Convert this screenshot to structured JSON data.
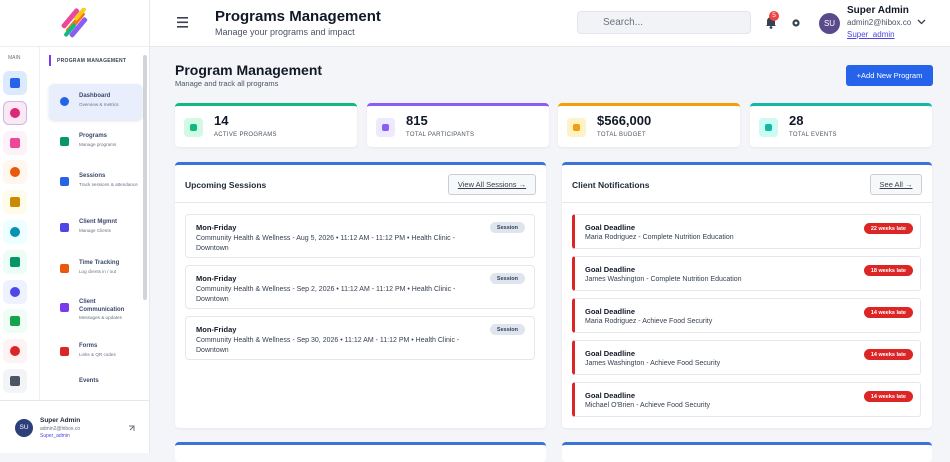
{
  "header": {
    "title": "Programs Management",
    "subtitle": "Manage your programs and impact",
    "search_placeholder": "Search...",
    "notification_count": "5",
    "user": {
      "initials": "SU",
      "name": "Super Admin",
      "email": "admin2@hibox.co",
      "role": "Super_admin"
    }
  },
  "sidebar": {
    "rail_label": "MAIN",
    "section": "PROGRAM MANAGEMENT",
    "items": [
      {
        "title": "Dashboard",
        "subtitle": "Overview & metrics"
      },
      {
        "title": "Programs",
        "subtitle": "Manage programs"
      },
      {
        "title": "Sessions",
        "subtitle": "Track sessions & attendance"
      },
      {
        "title": "Client Mgmnt",
        "subtitle": "Manage Clients"
      },
      {
        "title": "Time Tracking",
        "subtitle": "Log clients in / out"
      },
      {
        "title": "Client Communication",
        "subtitle": "Messages & updates"
      },
      {
        "title": "Forms",
        "subtitle": "Links & QR codes"
      },
      {
        "title": "Events",
        "subtitle": ""
      }
    ],
    "user": {
      "initials": "SU",
      "name": "Super Admin",
      "email": "admin2@hibox.co",
      "role": "Super_admin"
    }
  },
  "page": {
    "title": "Program Management",
    "subtitle": "Manage and track all programs",
    "add_button": "+Add New Program"
  },
  "stats": [
    {
      "value": "14",
      "label": "ACTIVE PROGRAMS"
    },
    {
      "value": "815",
      "label": "TOTAL PARTICIPANTS"
    },
    {
      "value": "$566,000",
      "label": "TOTAL BUDGET"
    },
    {
      "value": "28",
      "label": "TOTAL EVENTS"
    }
  ],
  "sessions": {
    "title": "Upcoming Sessions",
    "view_all": "View All Sessions →",
    "items": [
      {
        "title": "Mon-Friday",
        "detail": "Community Health & Wellness - Aug 5, 2026 • 11:12 AM - 11:12 PM • Health Clinic - Downtown",
        "badge": "Session"
      },
      {
        "title": "Mon-Friday",
        "detail": "Community Health & Wellness - Sep 2, 2026 • 11:12 AM - 11:12 PM • Health Clinic - Downtown",
        "badge": "Session"
      },
      {
        "title": "Mon-Friday",
        "detail": "Community Health & Wellness - Sep 30, 2026 • 11:12 AM - 11:12 PM • Health Clinic - Downtown",
        "badge": "Session"
      }
    ]
  },
  "notifications": {
    "title": "Client Notifications",
    "see_all": "See All →",
    "items": [
      {
        "title": "Goal Deadline",
        "detail": "Maria Rodriguez - Complete Nutrition Education",
        "badge": "22 weeks late"
      },
      {
        "title": "Goal Deadline",
        "detail": "James Washington - Complete Nutrition Education",
        "badge": "18 weeks late"
      },
      {
        "title": "Goal Deadline",
        "detail": "Maria Rodriguez - Achieve Food Security",
        "badge": "14 weeks late"
      },
      {
        "title": "Goal Deadline",
        "detail": "James Washington - Achieve Food Security",
        "badge": "14 weeks late"
      },
      {
        "title": "Goal Deadline",
        "detail": "Michael O'Brien - Achieve Food Security",
        "badge": "14 weeks late"
      }
    ]
  }
}
